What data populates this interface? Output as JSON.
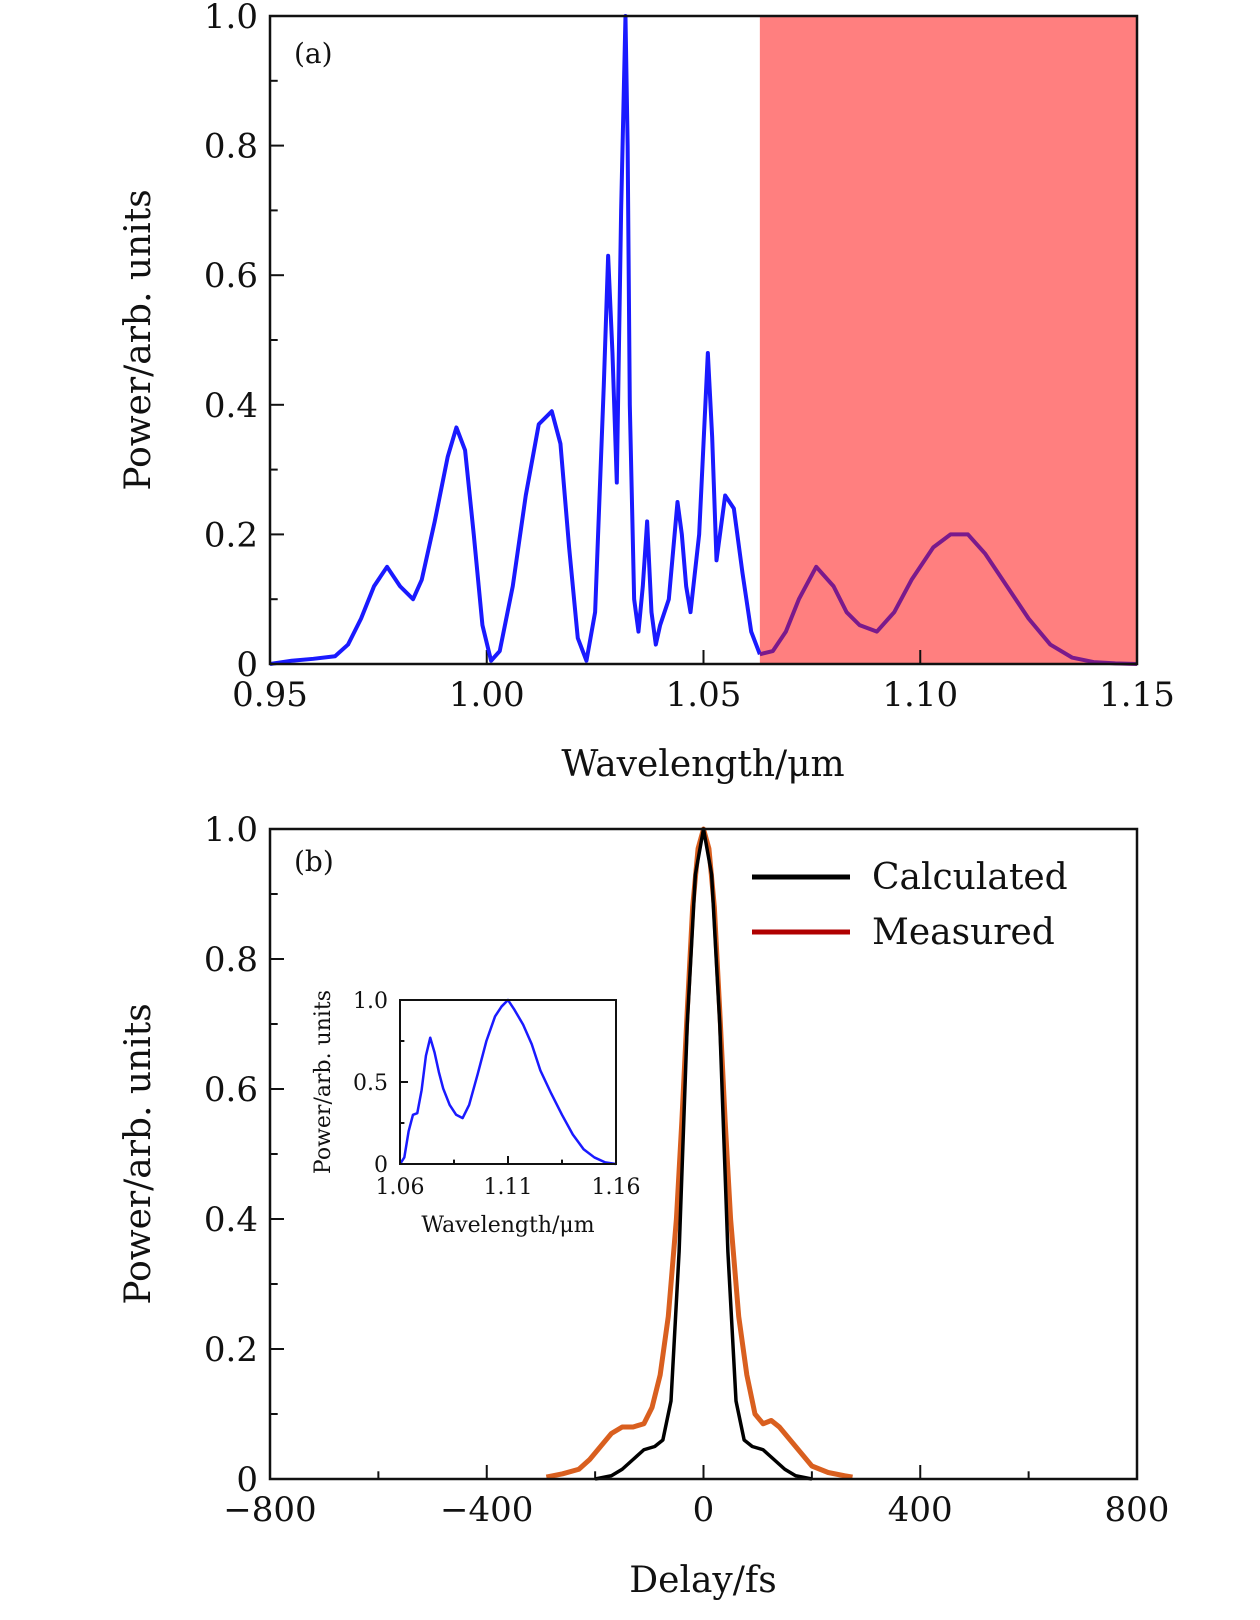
{
  "chart_data": [
    {
      "panel": "(a)",
      "type": "line",
      "xlabel": "Wavelength/μm",
      "ylabel": "Power/arb. units",
      "xlim": [
        0.95,
        1.15
      ],
      "ylim": [
        0,
        1.0
      ],
      "xticks": [
        "0.95",
        "1.00",
        "1.05",
        "1.10",
        "1.15"
      ],
      "yticks": [
        "0",
        "0.2",
        "0.4",
        "0.6",
        "0.8",
        "1.0"
      ],
      "shaded_region": {
        "x_start": 1.063,
        "x_end": 1.15,
        "color": "#ff7f7f"
      },
      "series": [
        {
          "color": "#1a1aff",
          "overlap_color": "#7a1a8c",
          "x": [
            0.95,
            0.955,
            0.96,
            0.965,
            0.968,
            0.971,
            0.974,
            0.977,
            0.98,
            0.983,
            0.985,
            0.988,
            0.991,
            0.993,
            0.995,
            0.997,
            0.999,
            1.001,
            1.003,
            1.006,
            1.009,
            1.012,
            1.015,
            1.017,
            1.019,
            1.021,
            1.023,
            1.025,
            1.027,
            1.028,
            1.029,
            1.03,
            1.031,
            1.032,
            1.0325,
            1.033,
            1.034,
            1.035,
            1.036,
            1.037,
            1.038,
            1.039,
            1.04,
            1.042,
            1.044,
            1.045,
            1.046,
            1.047,
            1.049,
            1.051,
            1.052,
            1.053,
            1.055,
            1.057,
            1.059,
            1.061,
            1.063,
            1.066,
            1.069,
            1.072,
            1.076,
            1.08,
            1.083,
            1.086,
            1.09,
            1.094,
            1.098,
            1.103,
            1.107,
            1.111,
            1.115,
            1.12,
            1.125,
            1.13,
            1.135,
            1.14,
            1.145,
            1.15
          ],
          "y": [
            0.0,
            0.005,
            0.008,
            0.012,
            0.03,
            0.07,
            0.12,
            0.15,
            0.12,
            0.1,
            0.13,
            0.22,
            0.32,
            0.365,
            0.33,
            0.2,
            0.06,
            0.005,
            0.02,
            0.12,
            0.26,
            0.37,
            0.39,
            0.34,
            0.18,
            0.04,
            0.005,
            0.08,
            0.43,
            0.63,
            0.48,
            0.28,
            0.7,
            1.0,
            0.8,
            0.4,
            0.1,
            0.05,
            0.12,
            0.22,
            0.08,
            0.03,
            0.06,
            0.1,
            0.25,
            0.2,
            0.12,
            0.08,
            0.2,
            0.48,
            0.35,
            0.16,
            0.26,
            0.24,
            0.14,
            0.05,
            0.015,
            0.02,
            0.05,
            0.1,
            0.15,
            0.12,
            0.08,
            0.06,
            0.05,
            0.08,
            0.13,
            0.18,
            0.2,
            0.2,
            0.17,
            0.12,
            0.07,
            0.03,
            0.01,
            0.003,
            0.001,
            0.0
          ]
        }
      ]
    },
    {
      "panel": "(b)",
      "type": "line",
      "xlabel": "Delay/fs",
      "ylabel": "Power/arb. units",
      "xlim": [
        -800,
        800
      ],
      "ylim": [
        0,
        1.0
      ],
      "xticks": [
        "−800",
        "−400",
        "0",
        "400",
        "800"
      ],
      "yticks": [
        "0",
        "0.2",
        "0.4",
        "0.6",
        "0.8",
        "1.0"
      ],
      "legend_position": "top-right",
      "series": [
        {
          "name": "Calculated",
          "color": "#000000",
          "x": [
            -200,
            -170,
            -150,
            -130,
            -110,
            -90,
            -75,
            -60,
            -45,
            -30,
            -15,
            0,
            15,
            30,
            45,
            60,
            75,
            90,
            110,
            130,
            150,
            170,
            200
          ],
          "y": [
            0.0,
            0.005,
            0.015,
            0.03,
            0.045,
            0.05,
            0.06,
            0.12,
            0.35,
            0.7,
            0.93,
            1.0,
            0.93,
            0.7,
            0.35,
            0.12,
            0.06,
            0.05,
            0.045,
            0.03,
            0.015,
            0.005,
            0.0
          ]
        },
        {
          "name": "Measured",
          "color": "#d95f1f",
          "legend_color": "#b00000",
          "x": [
            -290,
            -260,
            -230,
            -210,
            -190,
            -170,
            -150,
            -130,
            -110,
            -95,
            -80,
            -65,
            -50,
            -40,
            -30,
            -20,
            -10,
            0,
            10,
            20,
            30,
            40,
            50,
            65,
            80,
            95,
            110,
            125,
            140,
            160,
            180,
            200,
            230,
            260,
            275
          ],
          "y": [
            0.003,
            0.008,
            0.015,
            0.03,
            0.05,
            0.07,
            0.08,
            0.08,
            0.085,
            0.11,
            0.16,
            0.25,
            0.4,
            0.55,
            0.72,
            0.88,
            0.97,
            1.0,
            0.97,
            0.88,
            0.72,
            0.55,
            0.4,
            0.25,
            0.16,
            0.1,
            0.085,
            0.09,
            0.08,
            0.06,
            0.04,
            0.02,
            0.01,
            0.005,
            0.003
          ]
        }
      ],
      "inset": {
        "type": "line",
        "xlabel": "Wavelength/μm",
        "ylabel": "Power/arb. units",
        "xlim": [
          1.06,
          1.16
        ],
        "ylim": [
          0,
          1.0
        ],
        "xticks": [
          "1.06",
          "1.11",
          "1.16"
        ],
        "yticks": [
          "0",
          "0.5",
          "1.0"
        ],
        "series": [
          {
            "color": "#1a1aff",
            "x": [
              1.06,
              1.062,
              1.064,
              1.066,
              1.068,
              1.07,
              1.072,
              1.074,
              1.076,
              1.078,
              1.08,
              1.083,
              1.086,
              1.089,
              1.092,
              1.096,
              1.1,
              1.104,
              1.107,
              1.11,
              1.113,
              1.117,
              1.121,
              1.125,
              1.13,
              1.135,
              1.14,
              1.145,
              1.15,
              1.155,
              1.16
            ],
            "y": [
              0.0,
              0.04,
              0.2,
              0.3,
              0.31,
              0.45,
              0.66,
              0.77,
              0.68,
              0.56,
              0.46,
              0.36,
              0.3,
              0.28,
              0.36,
              0.55,
              0.75,
              0.9,
              0.96,
              1.0,
              0.94,
              0.85,
              0.73,
              0.57,
              0.43,
              0.3,
              0.18,
              0.09,
              0.04,
              0.01,
              0.0
            ]
          }
        ]
      }
    }
  ],
  "ui": {
    "panel_a_label": "(a)",
    "panel_b_label": "(b)",
    "legend_calculated": "Calculated",
    "legend_measured": "Measured"
  }
}
